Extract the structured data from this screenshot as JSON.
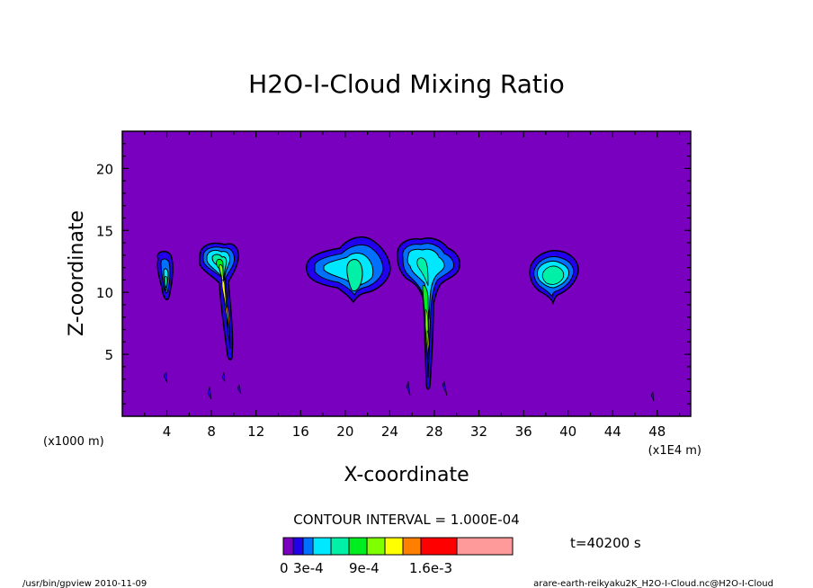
{
  "chart_data": {
    "type": "contour",
    "title": "H2O-I-Cloud Mixing Ratio",
    "xlabel": "X-coordinate",
    "ylabel": "Z-coordinate",
    "x_unit_left": "(x1000 m)",
    "x_unit_right": "(x1E4 m)",
    "xlim": [
      0,
      51
    ],
    "ylim": [
      0,
      23
    ],
    "x_ticks": [
      "4",
      "8",
      "12",
      "16",
      "20",
      "24",
      "28",
      "32",
      "36",
      "40",
      "44",
      "48"
    ],
    "y_ticks": [
      "5",
      "10",
      "15",
      "20"
    ],
    "contour_interval_label": "CONTOUR INTERVAL = 1.000E-04",
    "time_label": "t=40200 s",
    "colorbar_labels": [
      "0",
      "3e-4",
      "9e-4",
      "1.6e-3"
    ],
    "levels": [
      0,
      0.0001,
      0.0002,
      0.0003,
      0.0004,
      0.0005,
      0.0006,
      0.0009,
      0.001,
      0.0012,
      0.0016,
      0.002
    ],
    "colors": {
      "background": "#7a00c0",
      "bands": [
        "#7a00c0",
        "#2200ee",
        "#0070ff",
        "#00e8ff",
        "#00f0a8",
        "#00ee20",
        "#80ff00",
        "#ffff00",
        "#ff8000",
        "#ff0000",
        "#ff9a9a"
      ]
    },
    "clouds": [
      {
        "x": 4.0,
        "z": 11.5,
        "max": 0.0007
      },
      {
        "x": 9.0,
        "z": 12.5,
        "max": 0.0015
      },
      {
        "x": 20.5,
        "z": 12.0,
        "max": 0.0007
      },
      {
        "x": 27.5,
        "z": 12.5,
        "max": 0.0015
      },
      {
        "x": 39.0,
        "z": 11.5,
        "max": 0.0007
      }
    ]
  },
  "footer_left": "/usr/bin/gpview   2010-11-09",
  "footer_right": "arare-earth-reikyaku2K_H2O-I-Cloud.nc@H2O-I-Cloud"
}
